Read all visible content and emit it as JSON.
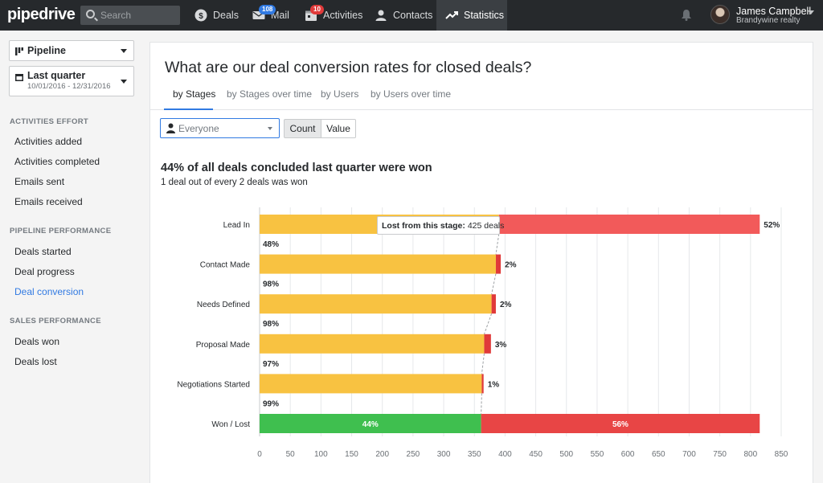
{
  "app": {
    "logo": "pipedrive",
    "search_placeholder": "Search",
    "nav": [
      {
        "label": "Deals",
        "icon": "dollar-circle-icon"
      },
      {
        "label": "Mail",
        "icon": "mail-icon",
        "badge": "108"
      },
      {
        "label": "Activities",
        "icon": "calendar-icon",
        "badge": "10"
      },
      {
        "label": "Contacts",
        "icon": "person-icon"
      },
      {
        "label": "Statistics",
        "icon": "trend-line-icon"
      }
    ],
    "user": {
      "name": "James Campbell",
      "company": "Brandywine realty"
    }
  },
  "sidebar": {
    "pipeline_label": "Pipeline",
    "period_label": "Last quarter",
    "period_dates": "10/01/2016 - 12/31/2016",
    "sections": [
      {
        "heading": "ACTIVITIES EFFORT",
        "items": [
          "Activities added",
          "Activities completed",
          "Emails sent",
          "Emails received"
        ]
      },
      {
        "heading": "PIPELINE PERFORMANCE",
        "items": [
          "Deals started",
          "Deal progress",
          "Deal conversion"
        ]
      },
      {
        "heading": "SALES PERFORMANCE",
        "items": [
          "Deals won",
          "Deals lost"
        ]
      }
    ],
    "active_item": "Deal conversion"
  },
  "main": {
    "title": "What are our deal conversion rates for closed deals?",
    "tabs": [
      "by Stages",
      "by Stages over time",
      "by Users",
      "by Users over time"
    ],
    "active_tab": "by Stages",
    "filter_user": "Everyone",
    "toggle": [
      "Count",
      "Value"
    ],
    "toggle_active": "Count",
    "headline": "44% of all deals concluded last quarter were won",
    "subline": "1 deal out of every 2 deals was won",
    "tooltip": {
      "label": "Lost from this stage:",
      "value": "425 deals"
    }
  },
  "chart_data": {
    "type": "bar",
    "orientation": "horizontal",
    "stacked": true,
    "categories": [
      "Lead In",
      "Contact Made",
      "Needs Defined",
      "Proposal Made",
      "Negotiations Started",
      "Won / Lost"
    ],
    "series": [
      {
        "name": "Converted",
        "values": [
          390,
          385,
          378,
          366,
          362,
          361
        ]
      },
      {
        "name": "Lost",
        "values": [
          425,
          8,
          7,
          11,
          3,
          454
        ]
      }
    ],
    "conversion_labels": [
      "48%",
      "98%",
      "98%",
      "97%",
      "99%",
      ""
    ],
    "lost_labels": [
      "52%",
      "2%",
      "2%",
      "3%",
      "1%",
      "56%"
    ],
    "won_lost_labels": {
      "won": "44%",
      "lost": "56%"
    },
    "xlim": [
      0,
      850
    ],
    "xticks": [
      0,
      50,
      100,
      150,
      200,
      250,
      300,
      350,
      400,
      450,
      500,
      550,
      600,
      650,
      700,
      750,
      800,
      850
    ],
    "grid": true,
    "colors": {
      "converted": "#f8c241",
      "lost_stage": "#f25a5a",
      "lost_small": "#e03a3a",
      "won": "#3fbf4f",
      "lost_final": "#e84545",
      "grid": "#e6e8ea"
    }
  }
}
